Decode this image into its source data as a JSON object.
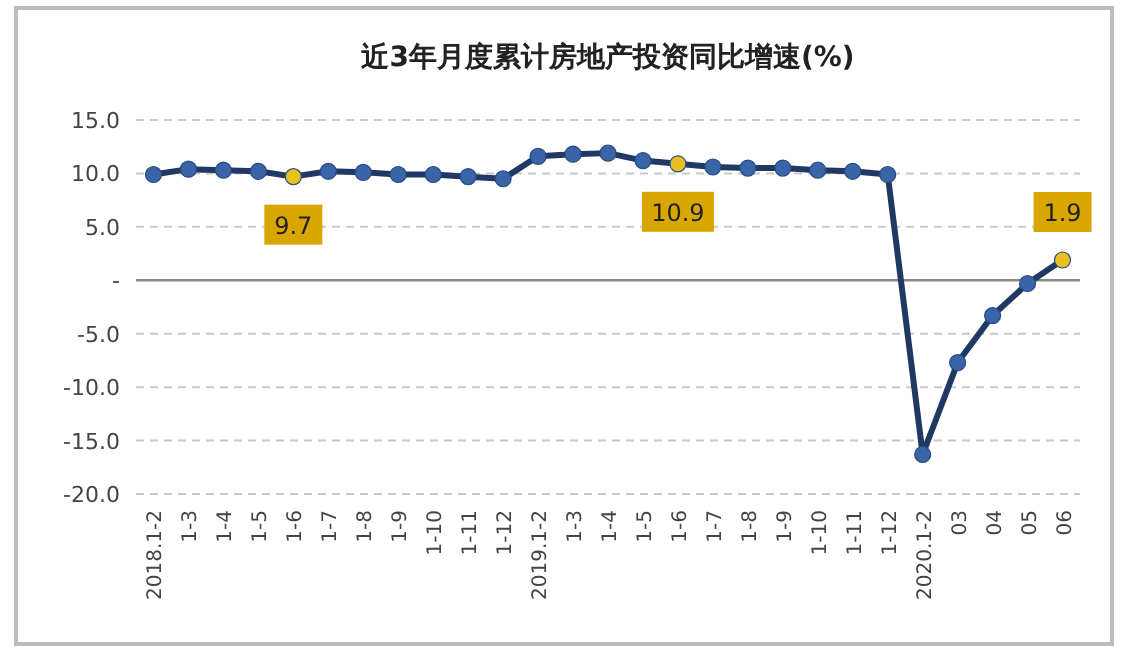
{
  "chart_data": {
    "type": "line",
    "title": "近3年月度累计房地产投资同比增速(%)",
    "categories": [
      "2018.1-2",
      "1-3",
      "1-4",
      "1-5",
      "1-6",
      "1-7",
      "1-8",
      "1-9",
      "1-10",
      "1-11",
      "1-12",
      "2019.1-2",
      "1-3",
      "1-4",
      "1-5",
      "1-6",
      "1-7",
      "1-8",
      "1-9",
      "1-10",
      "1-11",
      "1-12",
      "2020.1-2",
      "03",
      "04",
      "05",
      "06"
    ],
    "series": [
      {
        "color": "#1f3864",
        "values": [
          9.9,
          10.4,
          10.3,
          10.2,
          9.7,
          10.2,
          10.1,
          9.9,
          9.9,
          9.7,
          9.5,
          11.6,
          11.8,
          11.9,
          11.2,
          10.9,
          10.6,
          10.5,
          10.5,
          10.3,
          10.2,
          9.9,
          -16.3,
          -7.7,
          -3.3,
          -0.3,
          1.9
        ],
        "colors": [
          "#3a64a8",
          "#3a64a8",
          "#3a64a8",
          "#3a64a8",
          "#e8c020",
          "#3a64a8",
          "#3a64a8",
          "#3a64a8",
          "#3a64a8",
          "#3a64a8",
          "#3a64a8",
          "#3a64a8",
          "#3a64a8",
          "#3a64a8",
          "#3a64a8",
          "#e8c020",
          "#3a64a8",
          "#3a64a8",
          "#3a64a8",
          "#3a64a8",
          "#3a64a8",
          "#3a64a8",
          "#3a64a8",
          "#3a64a8",
          "#3a64a8",
          "#3a64a8",
          "#e8c020"
        ],
        "value_labels": [
          null,
          null,
          null,
          null,
          "9.7",
          null,
          null,
          null,
          null,
          null,
          null,
          null,
          null,
          null,
          null,
          "10.9",
          null,
          null,
          null,
          null,
          null,
          null,
          null,
          null,
          null,
          null,
          "1.9"
        ]
      }
    ],
    "ylim": [
      -20,
      15
    ],
    "yticks": [
      {
        "value": 15,
        "label": "15.0"
      },
      {
        "value": 10,
        "label": "10.0"
      },
      {
        "value": 5,
        "label": "5.0"
      },
      {
        "value": 0,
        "label": "-"
      },
      {
        "value": -5,
        "label": "-5.0"
      },
      {
        "value": -10,
        "label": "-10.0"
      },
      {
        "value": -15,
        "label": "-15.0"
      },
      {
        "value": -20,
        "label": "-20.0"
      }
    ],
    "grid": "y",
    "marker": "circle",
    "line_style": "solid"
  }
}
